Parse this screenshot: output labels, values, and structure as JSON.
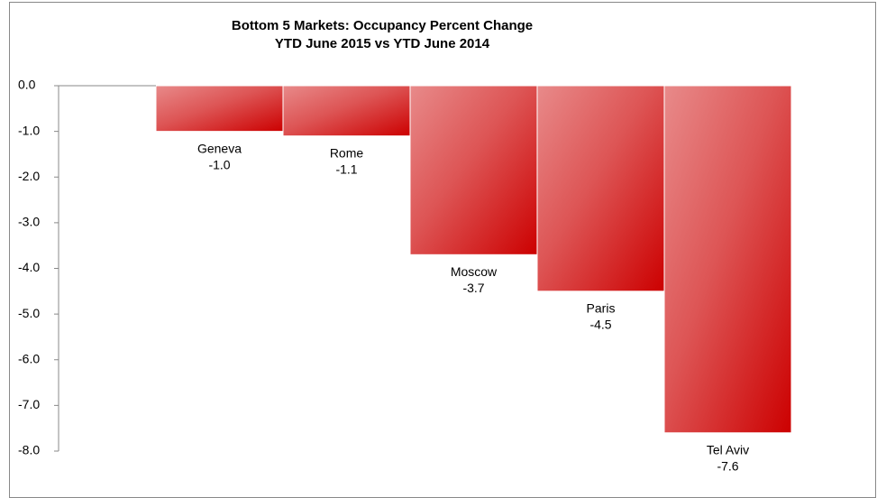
{
  "chart_data": {
    "type": "bar",
    "title": "Bottom 5 Markets: Occupancy Percent Change",
    "subtitle": "YTD June 2015 vs YTD June 2014",
    "categories": [
      "Geneva",
      "Rome",
      "Moscow",
      "Paris",
      "Tel Aviv"
    ],
    "values": [
      -1.0,
      -1.1,
      -3.7,
      -4.5,
      -7.6
    ],
    "value_labels": [
      "-1.0",
      "-1.1",
      "-3.7",
      "-4.5",
      "-7.6"
    ],
    "color": "#cc0000",
    "ylim": [
      -8,
      0
    ],
    "yticks": [
      {
        "value": 0,
        "label": "0.0"
      },
      {
        "value": -1,
        "label": "-1.0"
      },
      {
        "value": -2,
        "label": "-2.0"
      },
      {
        "value": -3,
        "label": "-3.0"
      },
      {
        "value": -4,
        "label": "-4.0"
      },
      {
        "value": -5,
        "label": "-5.0"
      },
      {
        "value": -6,
        "label": "-6.0"
      },
      {
        "value": -7,
        "label": "-7.0"
      },
      {
        "value": -8,
        "label": "-8.0"
      }
    ],
    "grid": false
  }
}
